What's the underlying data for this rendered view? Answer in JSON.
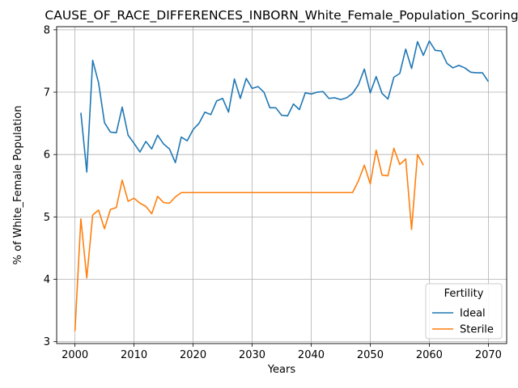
{
  "chart_data": {
    "type": "line",
    "title": "CAUSE_OF_RACE_DIFFERENCES_INBORN_White_Female_Population_Scoring",
    "xlabel": "Years",
    "ylabel": "% of White_Female Population",
    "xlim": [
      1996.9,
      2073.1
    ],
    "ylim": [
      2.97,
      8.05
    ],
    "xticks": [
      2000,
      2010,
      2020,
      2030,
      2040,
      2050,
      2060,
      2070
    ],
    "yticks": [
      3,
      4,
      5,
      6,
      7,
      8
    ],
    "grid": true,
    "legend": {
      "title": "Fertility",
      "placement": "lower-right"
    },
    "series": [
      {
        "name": "Ideal",
        "color": "#1f77b4",
        "x": [
          2001,
          2002,
          2003,
          2004,
          2005,
          2006,
          2007,
          2008,
          2009,
          2010,
          2011,
          2012,
          2013,
          2014,
          2015,
          2016,
          2017,
          2018,
          2019,
          2020,
          2021,
          2022,
          2023,
          2024,
          2025,
          2026,
          2027,
          2028,
          2029,
          2030,
          2031,
          2032,
          2033,
          2034,
          2035,
          2036,
          2037,
          2038,
          2039,
          2040,
          2041,
          2042,
          2043,
          2044,
          2045,
          2046,
          2047,
          2048,
          2049,
          2050,
          2051,
          2052,
          2053,
          2054,
          2055,
          2056,
          2057,
          2058,
          2059,
          2060,
          2061,
          2062,
          2063,
          2064,
          2065,
          2066,
          2067,
          2068,
          2069,
          2070
        ],
        "values": [
          6.67,
          5.72,
          7.51,
          7.15,
          6.51,
          6.36,
          6.35,
          6.76,
          6.31,
          6.18,
          6.04,
          6.21,
          6.09,
          6.31,
          6.17,
          6.09,
          5.87,
          6.28,
          6.22,
          6.4,
          6.5,
          6.68,
          6.64,
          6.86,
          6.9,
          6.68,
          7.21,
          6.9,
          7.22,
          7.06,
          7.09,
          7.0,
          6.75,
          6.75,
          6.63,
          6.62,
          6.81,
          6.72,
          6.99,
          6.97,
          7.0,
          7.01,
          6.9,
          6.91,
          6.88,
          6.91,
          6.98,
          7.12,
          7.37,
          6.99,
          7.25,
          6.98,
          6.89,
          7.24,
          7.3,
          7.69,
          7.38,
          7.81,
          7.59,
          7.82,
          7.67,
          7.66,
          7.46,
          7.39,
          7.43,
          7.39,
          7.32,
          7.31,
          7.31,
          7.17
        ]
      },
      {
        "name": "Sterile",
        "color": "#ff7f0e",
        "x": [
          2000,
          2001,
          2002,
          2003,
          2004,
          2005,
          2006,
          2007,
          2008,
          2009,
          2010,
          2011,
          2012,
          2013,
          2014,
          2015,
          2016,
          2017,
          2018,
          2019,
          2020,
          2021,
          2022,
          2023,
          2024,
          2025,
          2026,
          2027,
          2028,
          2029,
          2030,
          2031,
          2032,
          2033,
          2034,
          2035,
          2036,
          2037,
          2038,
          2039,
          2040,
          2041,
          2042,
          2043,
          2044,
          2045,
          2046,
          2047,
          2048,
          2049,
          2050,
          2051,
          2052,
          2053,
          2054,
          2055,
          2056,
          2057,
          2058,
          2059
        ],
        "values": [
          3.17,
          4.97,
          4.02,
          5.03,
          5.11,
          4.81,
          5.12,
          5.15,
          5.59,
          5.25,
          5.3,
          5.22,
          5.17,
          5.05,
          5.33,
          5.23,
          5.22,
          5.32,
          5.39,
          5.39,
          5.39,
          5.39,
          5.39,
          5.39,
          5.39,
          5.39,
          5.39,
          5.39,
          5.39,
          5.39,
          5.39,
          5.39,
          5.39,
          5.39,
          5.39,
          5.39,
          5.39,
          5.39,
          5.39,
          5.39,
          5.39,
          5.39,
          5.39,
          5.39,
          5.39,
          5.39,
          5.39,
          5.39,
          5.58,
          5.83,
          5.53,
          6.07,
          5.67,
          5.66,
          6.1,
          5.84,
          5.93,
          4.8,
          6.0,
          5.83
        ]
      }
    ]
  }
}
